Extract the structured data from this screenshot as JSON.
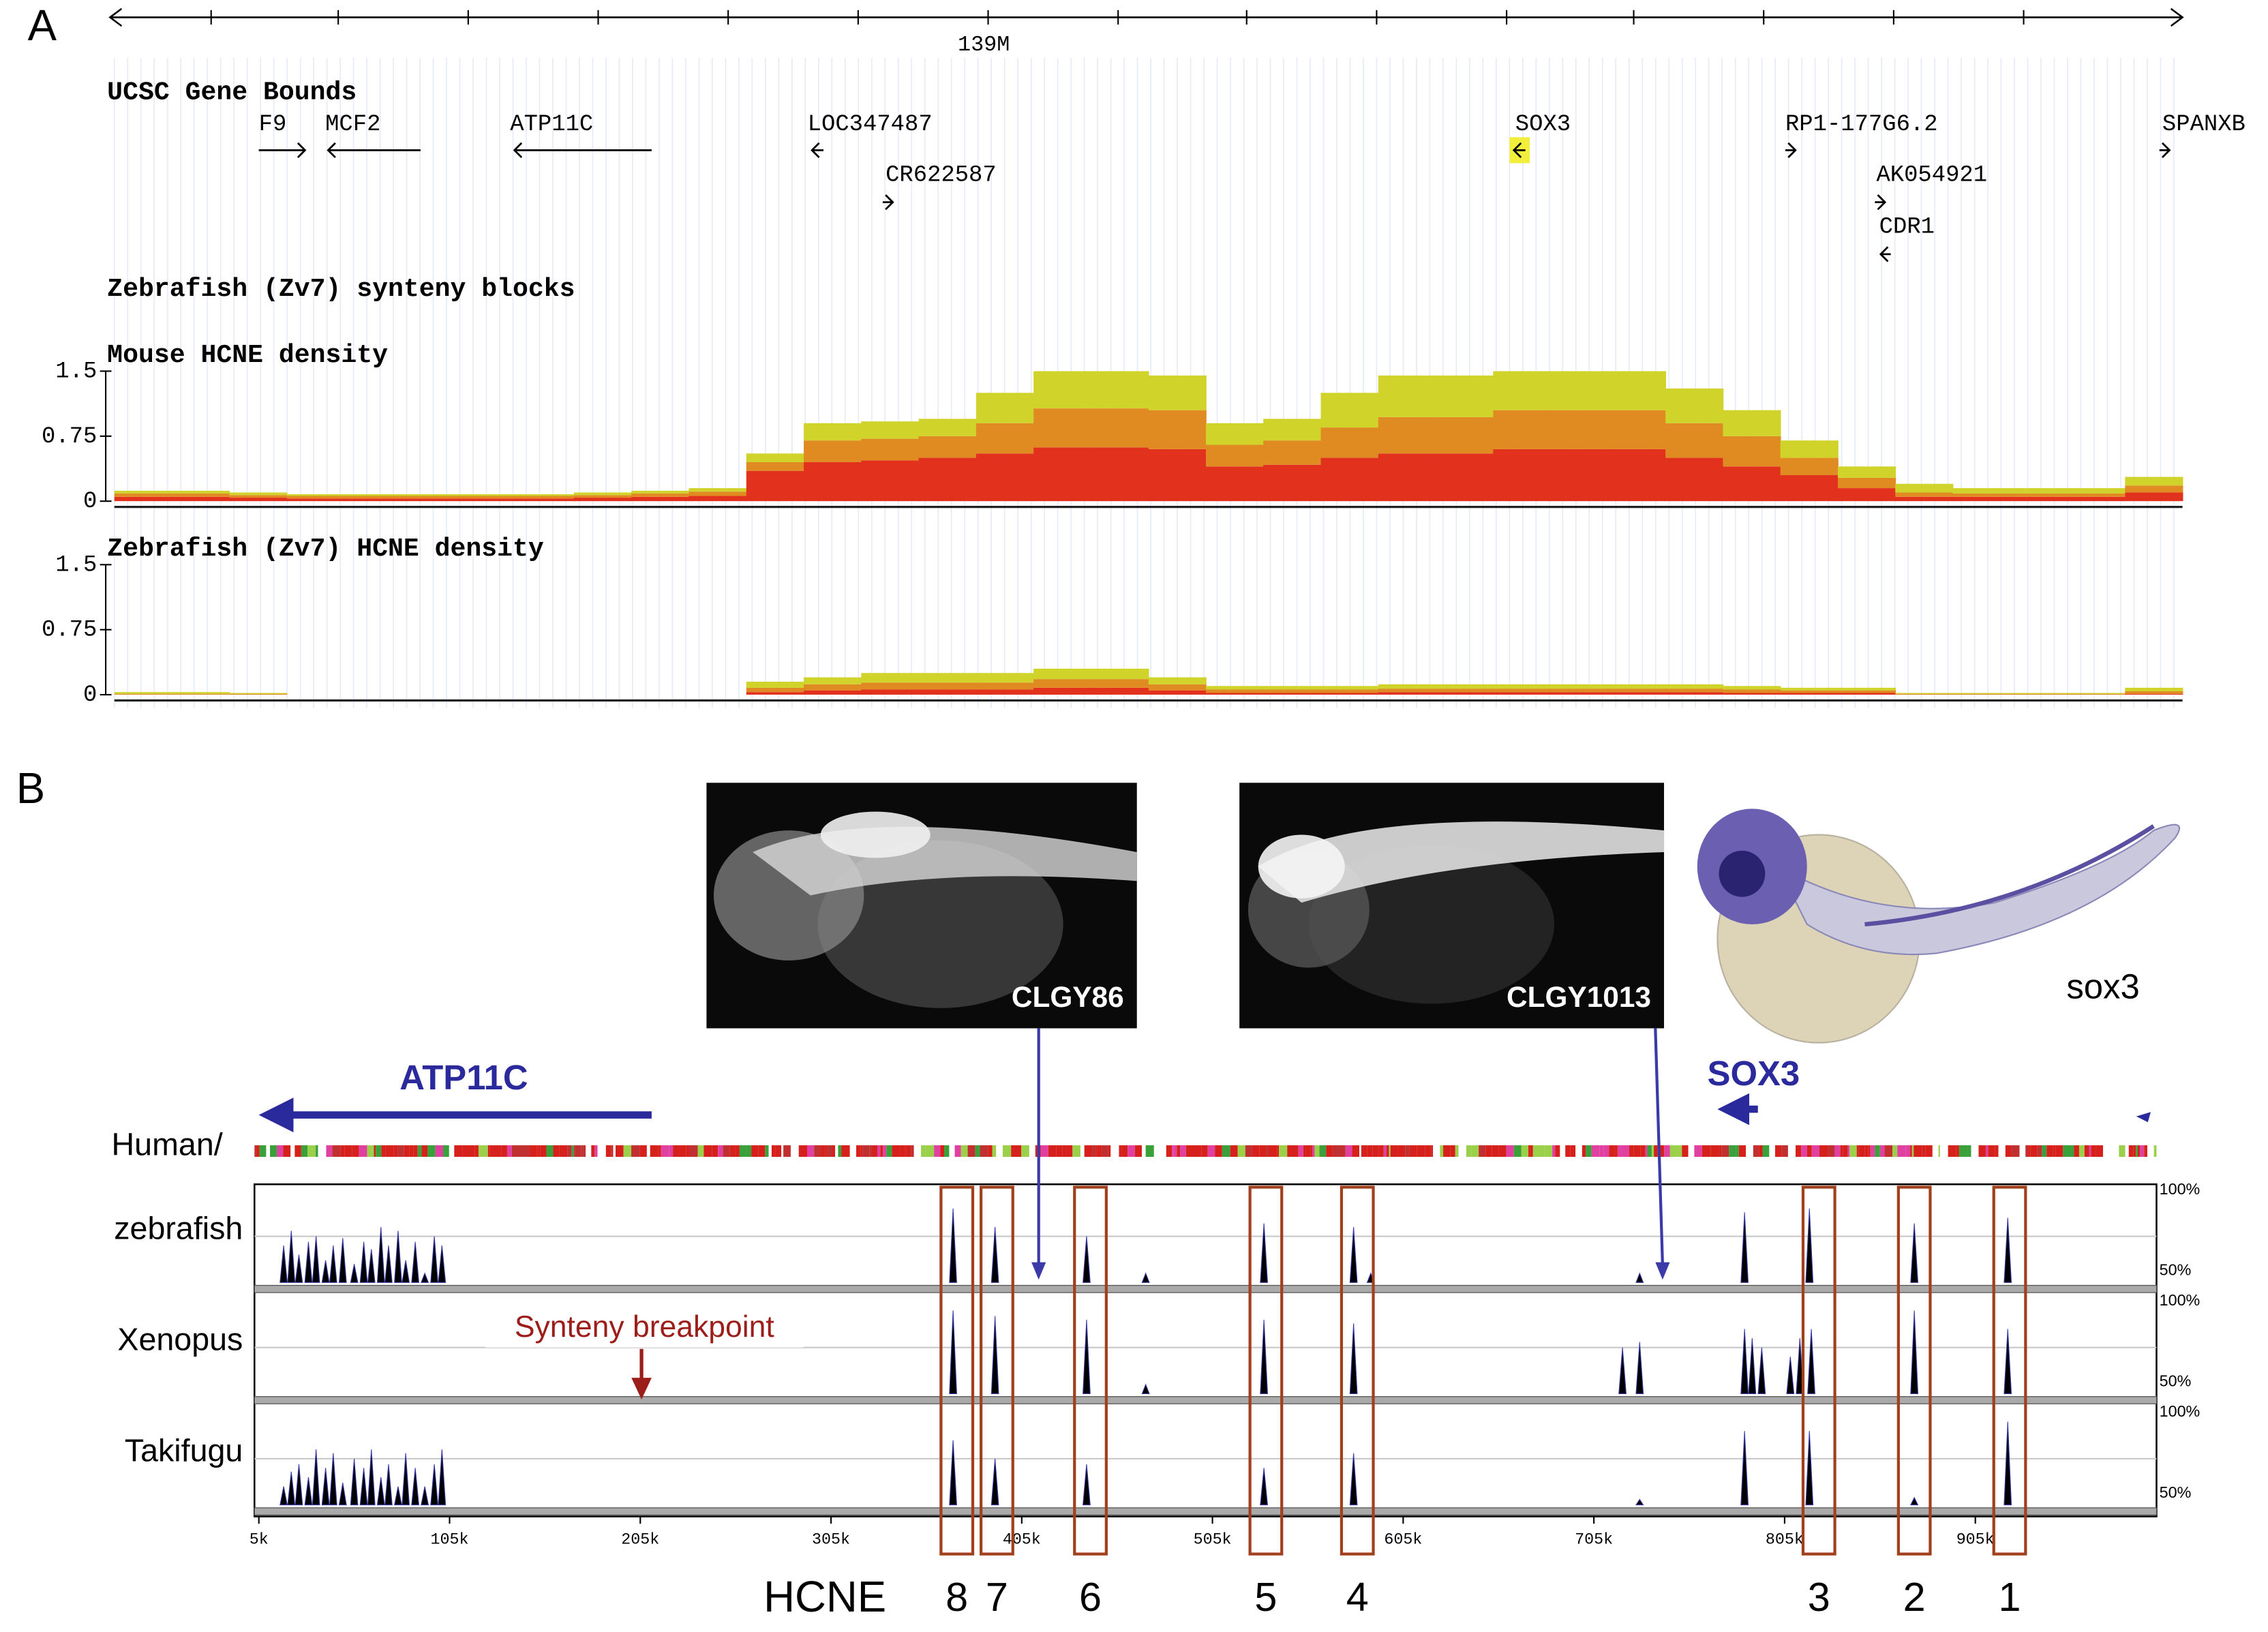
{
  "panel_a": {
    "label": "A",
    "ruler": {
      "label": "139M"
    },
    "gene_track": {
      "title": "UCSC Gene Bounds",
      "genes": [
        "F9",
        "MCF2",
        "ATP11C",
        "LOC347487",
        "CR622587",
        "SOX3",
        "RP1-177G6.2",
        "AK054921",
        "CDR1",
        "SPANXB"
      ]
    },
    "synteny_track": {
      "title": "Zebrafish (Zv7) synteny blocks"
    },
    "density_tracks": [
      {
        "type": "stacked_area",
        "title": "Mouse HCNE density",
        "ylim": [
          0,
          1.5
        ],
        "yticks": [
          0,
          0.75,
          1.5
        ],
        "series": [
          {
            "color": "#e2321e",
            "values": [
              0.05,
              0.05,
              0.04,
              0.03,
              0.03,
              0.03,
              0.03,
              0.03,
              0.04,
              0.05,
              0.06,
              0.35,
              0.45,
              0.47,
              0.5,
              0.55,
              0.62,
              0.62,
              0.6,
              0.4,
              0.42,
              0.5,
              0.55,
              0.55,
              0.6,
              0.6,
              0.6,
              0.5,
              0.4,
              0.3,
              0.15,
              0.05,
              0.05,
              0.05,
              0.05,
              0.1
            ]
          },
          {
            "color": "#e08a22",
            "values": [
              0.04,
              0.04,
              0.03,
              0.03,
              0.03,
              0.03,
              0.03,
              0.03,
              0.03,
              0.04,
              0.05,
              0.1,
              0.25,
              0.25,
              0.25,
              0.35,
              0.45,
              0.45,
              0.45,
              0.25,
              0.28,
              0.35,
              0.42,
              0.42,
              0.45,
              0.45,
              0.45,
              0.4,
              0.35,
              0.2,
              0.12,
              0.05,
              0.04,
              0.04,
              0.04,
              0.08
            ]
          },
          {
            "color": "#cfd32a",
            "values": [
              0.03,
              0.03,
              0.03,
              0.02,
              0.02,
              0.02,
              0.02,
              0.02,
              0.03,
              0.03,
              0.04,
              0.1,
              0.2,
              0.2,
              0.2,
              0.35,
              0.43,
              0.43,
              0.4,
              0.25,
              0.25,
              0.4,
              0.48,
              0.48,
              0.45,
              0.45,
              0.45,
              0.4,
              0.3,
              0.2,
              0.13,
              0.1,
              0.06,
              0.06,
              0.06,
              0.1
            ]
          }
        ]
      },
      {
        "type": "stacked_area",
        "title": "Zebrafish (Zv7) HCNE density",
        "ylim": [
          0,
          1.5
        ],
        "yticks": [
          0,
          0.75,
          1.5
        ],
        "series": [
          {
            "color": "#e2321e",
            "values": [
              0,
              0,
              0,
              0,
              0,
              0,
              0,
              0,
              0,
              0,
              0,
              0.03,
              0.05,
              0.06,
              0.06,
              0.06,
              0.08,
              0.08,
              0.05,
              0.02,
              0.02,
              0.02,
              0.03,
              0.03,
              0.03,
              0.03,
              0.03,
              0.03,
              0.02,
              0.02,
              0.02,
              0,
              0,
              0,
              0,
              0.01
            ]
          },
          {
            "color": "#e08a22",
            "values": [
              0.01,
              0.01,
              0.01,
              0,
              0,
              0,
              0,
              0,
              0,
              0,
              0,
              0.05,
              0.07,
              0.08,
              0.08,
              0.08,
              0.1,
              0.1,
              0.07,
              0.04,
              0.04,
              0.04,
              0.04,
              0.04,
              0.04,
              0.04,
              0.04,
              0.04,
              0.04,
              0.03,
              0.03,
              0.01,
              0.01,
              0.01,
              0.01,
              0.03
            ]
          },
          {
            "color": "#cfd32a",
            "values": [
              0.02,
              0.02,
              0.01,
              0,
              0,
              0,
              0,
              0,
              0,
              0,
              0,
              0.07,
              0.08,
              0.11,
              0.11,
              0.11,
              0.12,
              0.12,
              0.08,
              0.04,
              0.04,
              0.04,
              0.05,
              0.05,
              0.05,
              0.05,
              0.05,
              0.05,
              0.04,
              0.03,
              0.03,
              0.01,
              0.01,
              0.01,
              0.01,
              0.04
            ]
          }
        ]
      }
    ]
  },
  "panel_b": {
    "label": "B",
    "images": [
      {
        "label": "CLGY86"
      },
      {
        "label": "CLGY1013"
      },
      {
        "label": "sox3"
      }
    ],
    "genes": [
      "ATP11C",
      "SOX3"
    ],
    "reference_label": "Human/",
    "annotation": "Synteny breakpoint",
    "conservation": {
      "type": "peaks",
      "xlim": [
        2700,
        1000000
      ],
      "xticks": [
        {
          "value": 5000,
          "label": "5k"
        },
        {
          "value": 105000,
          "label": "105k"
        },
        {
          "value": 205000,
          "label": "205k"
        },
        {
          "value": 305000,
          "label": "305k"
        },
        {
          "value": 405000,
          "label": "405k"
        },
        {
          "value": 505000,
          "label": "505k"
        },
        {
          "value": 605000,
          "label": "605k"
        },
        {
          "value": 705000,
          "label": "705k"
        },
        {
          "value": 805000,
          "label": "805k"
        },
        {
          "value": 905000,
          "label": "905k"
        }
      ],
      "ylim": [
        50,
        100
      ],
      "yticks": [
        {
          "value": 50,
          "label": "50%"
        },
        {
          "value": 100,
          "label": "100%"
        }
      ],
      "series": [
        {
          "name": "zebrafish",
          "color": "#000000",
          "x": [
            18000,
            22000,
            26000,
            31000,
            35000,
            40000,
            44000,
            49000,
            55000,
            60000,
            64000,
            69000,
            73000,
            78000,
            82000,
            87000,
            92000,
            97000,
            101000,
            369000,
            391000,
            439000,
            470000,
            532000,
            579000,
            588000,
            729000,
            784000,
            818000,
            873000,
            922000
          ],
          "values": [
            70,
            78,
            65,
            72,
            75,
            62,
            70,
            74,
            60,
            72,
            68,
            80,
            70,
            78,
            62,
            72,
            55,
            75,
            70,
            90,
            80,
            75,
            55,
            82,
            80,
            55,
            55,
            88,
            90,
            82,
            85
          ]
        },
        {
          "name": "Xenopus",
          "color": "#000000",
          "x": [
            369000,
            391000,
            439000,
            470000,
            532000,
            579000,
            720000,
            729000,
            784000,
            788000,
            793000,
            808000,
            813000,
            819000,
            873000,
            922000
          ],
          "values": [
            95,
            92,
            90,
            55,
            90,
            88,
            75,
            78,
            85,
            80,
            75,
            70,
            80,
            85,
            95,
            85
          ]
        },
        {
          "name": "Takifugu",
          "color": "#000000",
          "x": [
            18000,
            22000,
            26000,
            31000,
            35000,
            40000,
            44000,
            49000,
            55000,
            60000,
            64000,
            69000,
            73000,
            78000,
            82000,
            87000,
            92000,
            97000,
            101000,
            369000,
            391000,
            439000,
            532000,
            579000,
            729000,
            784000,
            818000,
            873000,
            922000
          ],
          "values": [
            60,
            68,
            72,
            65,
            80,
            70,
            78,
            62,
            75,
            70,
            80,
            65,
            72,
            60,
            78,
            70,
            60,
            72,
            80,
            85,
            75,
            72,
            70,
            78,
            53,
            90,
            90,
            54,
            95
          ]
        }
      ]
    },
    "hcne": {
      "label": "HCNE",
      "elements": [
        {
          "label": "8",
          "position": 371000
        },
        {
          "label": "7",
          "position": 392000
        },
        {
          "label": "6",
          "position": 441000
        },
        {
          "label": "5",
          "position": 533000
        },
        {
          "label": "4",
          "position": 581000
        },
        {
          "label": "3",
          "position": 823000
        },
        {
          "label": "2",
          "position": 873000
        },
        {
          "label": "1",
          "position": 923000
        }
      ]
    }
  }
}
